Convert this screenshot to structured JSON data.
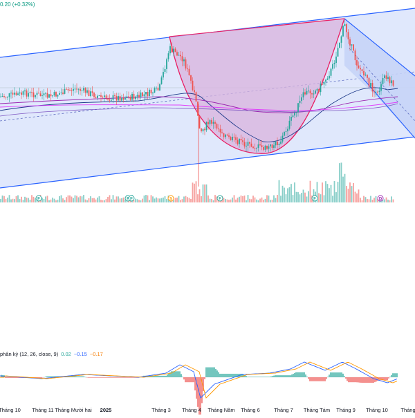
{
  "header": {
    "price_change": "0.20 (+0.32%)"
  },
  "macd": {
    "label": "phân kỳ (12, 26, close, 9)",
    "hist_value": "0.02",
    "macd_value": "−0.15",
    "signal_value": "−0.17"
  },
  "colors": {
    "up": "#26a69a",
    "down": "#ef5350",
    "channel": "#2962ff",
    "channel_fill": "#dbe4fb",
    "cup_fill": "#d9b3dd",
    "cup_line": "#e91e63",
    "ma_blue": "#1e3a8a",
    "ma_purple": "#9c27b0",
    "ma_pink": "#e040fb",
    "macd_line": "#2962ff",
    "signal_line": "#ff9800"
  },
  "x_axis": {
    "labels": [
      "Tháng 10",
      "Tháng 11",
      "Tháng Mười hai",
      "2025",
      "Tháng 3",
      "Tháng 4",
      "Tháng Năm",
      "Tháng 6",
      "Tháng 7",
      "Tháng Tám",
      "Tháng 9",
      "Tháng 10",
      "Tháng"
    ]
  },
  "events": [
    {
      "letter": "F",
      "kind": "dividend"
    },
    {
      "letter": "F",
      "kind": "dividend"
    },
    {
      "letter": "F",
      "kind": "dividend"
    },
    {
      "letter": "S",
      "kind": "split"
    },
    {
      "letter": "F",
      "kind": "dividend"
    },
    {
      "letter": "F",
      "kind": "dividend"
    },
    {
      "letter": "D",
      "kind": "dividend-cash"
    }
  ],
  "icons": {
    "event_marker": "event-circle-icon"
  }
}
